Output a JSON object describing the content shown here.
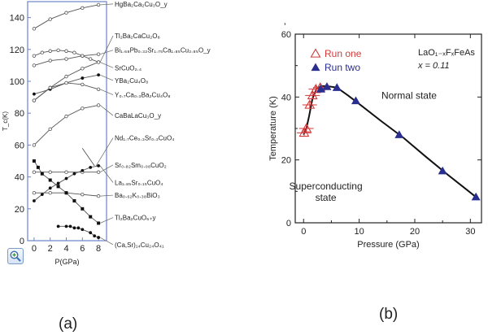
{
  "captions": {
    "a": "(a)",
    "b": "(b)"
  },
  "chart_data": [
    {
      "type": "line",
      "title": "",
      "xlabel": "P(GPa)",
      "ylabel": "T_c(K)",
      "xlim": [
        -0.8,
        9
      ],
      "ylim": [
        0,
        150
      ],
      "xticks": [
        "0",
        "2",
        "4",
        "6",
        "8"
      ],
      "xtick_values": [
        0,
        2,
        4,
        6,
        8
      ],
      "yticks": [
        "0",
        "20",
        "40",
        "60",
        "80",
        "100",
        "120",
        "140"
      ],
      "ytick_values": [
        0,
        20,
        40,
        60,
        80,
        100,
        120,
        140
      ],
      "series": [
        {
          "name": "HgBa₂Ca₂Cu₃O_y",
          "marker": "open-circle",
          "label_y": 147,
          "points": [
            [
              0,
              133
            ],
            [
              2,
              139
            ],
            [
              4,
              143
            ],
            [
              6,
              146
            ],
            [
              8,
              148
            ]
          ]
        },
        {
          "name": "Tl₂Ba₂CaCu₂O₈",
          "marker": "open-circle",
          "label_y": 127,
          "points": [
            [
              0,
              116
            ],
            [
              1,
              118
            ],
            [
              2,
              119
            ],
            [
              3,
              119.5
            ],
            [
              4,
              119
            ],
            [
              5,
              118
            ],
            [
              6,
              116
            ],
            [
              7,
              114
            ],
            [
              8,
              112
            ]
          ]
        },
        {
          "name": "Bi₁.₆₈Pb₀.₃₂Sr₁.₇₅Ca₁.₈₅Cu₂.₈₅O_y",
          "marker": "open-circle",
          "label_y": 118,
          "points": [
            [
              0,
              110
            ],
            [
              2,
              113
            ],
            [
              4,
              114
            ],
            [
              6,
              116
            ],
            [
              8,
              117
            ]
          ]
        },
        {
          "name": "SrCuO₂.₄",
          "marker": "open-circle",
          "label_y": 107,
          "points": [
            [
              0,
              88
            ],
            [
              2,
              96
            ],
            [
              4,
              103
            ],
            [
              6,
              108
            ],
            [
              8,
              112
            ]
          ]
        },
        {
          "name": "YBa₂Cu₄O₈",
          "marker": "filled-circle",
          "label_y": 99,
          "points": [
            [
              0,
              92
            ],
            [
              2,
              95
            ],
            [
              4,
              99
            ],
            [
              6,
              102
            ],
            [
              8,
              104
            ]
          ]
        },
        {
          "name": "Y₀.₇Ca₀.₃Ba₂Cu₄O₈",
          "marker": "open-circle",
          "label_y": 90,
          "points": [
            [
              0,
              88
            ],
            [
              2,
              96
            ],
            [
              4,
              99
            ],
            [
              6,
              98
            ],
            [
              8,
              95
            ]
          ]
        },
        {
          "name": "CaBaLaCu₃O_y",
          "marker": "open-circle",
          "label_y": 77,
          "points": [
            [
              0,
              60
            ],
            [
              2,
              70
            ],
            [
              4,
              78
            ],
            [
              6,
              83
            ],
            [
              8,
              85
            ]
          ]
        },
        {
          "name": "Nd₁.₇Ce₀.₃Sr₀.₃CuO₄",
          "marker": "none",
          "label_y": 63,
          "points": [
            [
              6,
              58
            ],
            [
              7.5,
              47
            ]
          ]
        },
        {
          "name": "Sr₀.₈₂Sm₀.₀₈CuO₂",
          "marker": "open-circle",
          "label_y": 46,
          "points": [
            [
              0,
              43
            ],
            [
              2,
              43
            ],
            [
              4,
              43
            ],
            [
              6,
              43
            ],
            [
              8,
              43
            ]
          ]
        },
        {
          "name": "La₁.₈₅Sr₀.₁₅CuO₄",
          "marker": "filled-circle",
          "label_y": 35,
          "points": [
            [
              0,
              25
            ],
            [
              1,
              29
            ],
            [
              2,
              33
            ],
            [
              3,
              36
            ],
            [
              4,
              39
            ],
            [
              5,
              42
            ],
            [
              6,
              44
            ],
            [
              7,
              46
            ],
            [
              8,
              47
            ]
          ]
        },
        {
          "name": "Ba₀.₆₂K₀.₃₈BiO₃",
          "marker": "open-circle",
          "label_y": 27,
          "points": [
            [
              0,
              30
            ],
            [
              2,
              30
            ],
            [
              4,
              30
            ],
            [
              6,
              29
            ],
            [
              8,
              28
            ]
          ]
        },
        {
          "name": "Tl₂Ba₂CuO₆₊y",
          "marker": "filled-square",
          "label_y": 13,
          "points": [
            [
              0,
              50
            ],
            [
              0.5,
              46
            ],
            [
              1,
              42
            ],
            [
              2,
              38
            ],
            [
              3,
              34
            ],
            [
              4,
              30
            ],
            [
              5,
              25
            ],
            [
              6,
              20
            ],
            [
              7,
              15
            ],
            [
              8,
              11
            ]
          ]
        },
        {
          "name": "(Ca,Sr)₁₄Cu₂₄O₄₁",
          "marker": "filled-circle",
          "label_y": -4,
          "points": [
            [
              3,
              9
            ],
            [
              4,
              9
            ],
            [
              4.5,
              9
            ],
            [
              5,
              8
            ],
            [
              5.5,
              8
            ],
            [
              6,
              7
            ],
            [
              7,
              5
            ],
            [
              7.5,
              3
            ],
            [
              8,
              2
            ]
          ]
        }
      ]
    },
    {
      "type": "scatter",
      "title": "",
      "xlabel": "Pressure (GPa)",
      "ylabel": "Temperature (K)",
      "xlim": [
        -1.5,
        32
      ],
      "ylim": [
        0,
        60
      ],
      "xticks": [
        "0",
        "10",
        "20",
        "30"
      ],
      "xtick_values": [
        0,
        10,
        20,
        30
      ],
      "yticks": [
        "0",
        "20",
        "40",
        "60"
      ],
      "ytick_values": [
        0,
        20,
        40,
        60
      ],
      "corner_mark": "ʼ",
      "compound": "LaO₁₋ₓFₓFeAs",
      "doping": "x = 0.11",
      "annotations": [
        "Normal state",
        "Superconducting state"
      ],
      "annotation_positions": [
        [
          14,
          39.5
        ],
        [
          4,
          7
        ]
      ],
      "legend": {
        "position": "top-left",
        "entries": [
          "Run one",
          "Run two"
        ]
      },
      "series": [
        {
          "name": "Run one",
          "color": "#d13a3a",
          "marker": "open-triangle-errorbar",
          "points": [
            [
              0.1,
              28.6
            ],
            [
              0.5,
              30
            ],
            [
              1.1,
              37.5
            ],
            [
              1.6,
              40.5
            ],
            [
              2.2,
              42.5
            ],
            [
              3.0,
              43
            ]
          ],
          "error": [
            1.2,
            1.2,
            1.2,
            1.2,
            1.2,
            1.2
          ]
        },
        {
          "name": "Run two",
          "color": "#2a2e8f",
          "marker": "filled-triangle",
          "points": [
            [
              3.1,
              42.5
            ],
            [
              4.2,
              43.3
            ],
            [
              6.0,
              43
            ],
            [
              9.4,
              38.8
            ],
            [
              17.2,
              28
            ],
            [
              25.0,
              16.5
            ],
            [
              31.0,
              8.2
            ]
          ]
        }
      ],
      "fit_curve": [
        [
          0,
          28
        ],
        [
          0.5,
          30
        ],
        [
          1,
          34
        ],
        [
          1.6,
          39.5
        ],
        [
          2.3,
          42.5
        ],
        [
          3.2,
          43.5
        ],
        [
          4.5,
          43.4
        ],
        [
          6,
          43
        ],
        [
          8,
          40.5
        ],
        [
          10,
          37.8
        ],
        [
          14,
          32.3
        ],
        [
          18,
          27
        ],
        [
          22,
          21
        ],
        [
          26,
          15.2
        ],
        [
          29,
          11
        ],
        [
          31,
          8.2
        ]
      ]
    }
  ]
}
